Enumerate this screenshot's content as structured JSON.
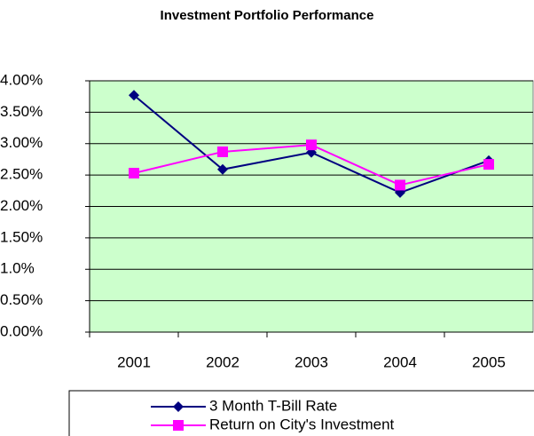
{
  "chart_data": {
    "type": "line",
    "title": "Investment Portfolio Performance",
    "categories": [
      "2001",
      "2002",
      "2003",
      "2004",
      "2005"
    ],
    "series": [
      {
        "name": "3 Month T-Bill Rate",
        "color": "#000080",
        "values": [
          3.77,
          2.59,
          2.86,
          2.22,
          2.73
        ]
      },
      {
        "name": "Return on City's Investment",
        "color": "#ff00ff",
        "values": [
          2.53,
          2.87,
          2.98,
          2.34,
          2.67
        ]
      }
    ],
    "ylim": [
      0,
      4
    ],
    "yticks": [
      {
        "value": 0,
        "label": "0.00%"
      },
      {
        "value": 0.5,
        "label": "0.50%"
      },
      {
        "value": 1,
        "label": "1.0%"
      },
      {
        "value": 1.5,
        "label": "1.50%"
      },
      {
        "value": 2,
        "label": "2.00%"
      },
      {
        "value": 2.5,
        "label": "2.50%"
      },
      {
        "value": 3,
        "label": "3.00%"
      },
      {
        "value": 3.5,
        "label": "3.50%"
      },
      {
        "value": 4,
        "label": "4.00%"
      }
    ],
    "grid": true,
    "plot_background": "#ccffcc",
    "legend": "bottom"
  }
}
